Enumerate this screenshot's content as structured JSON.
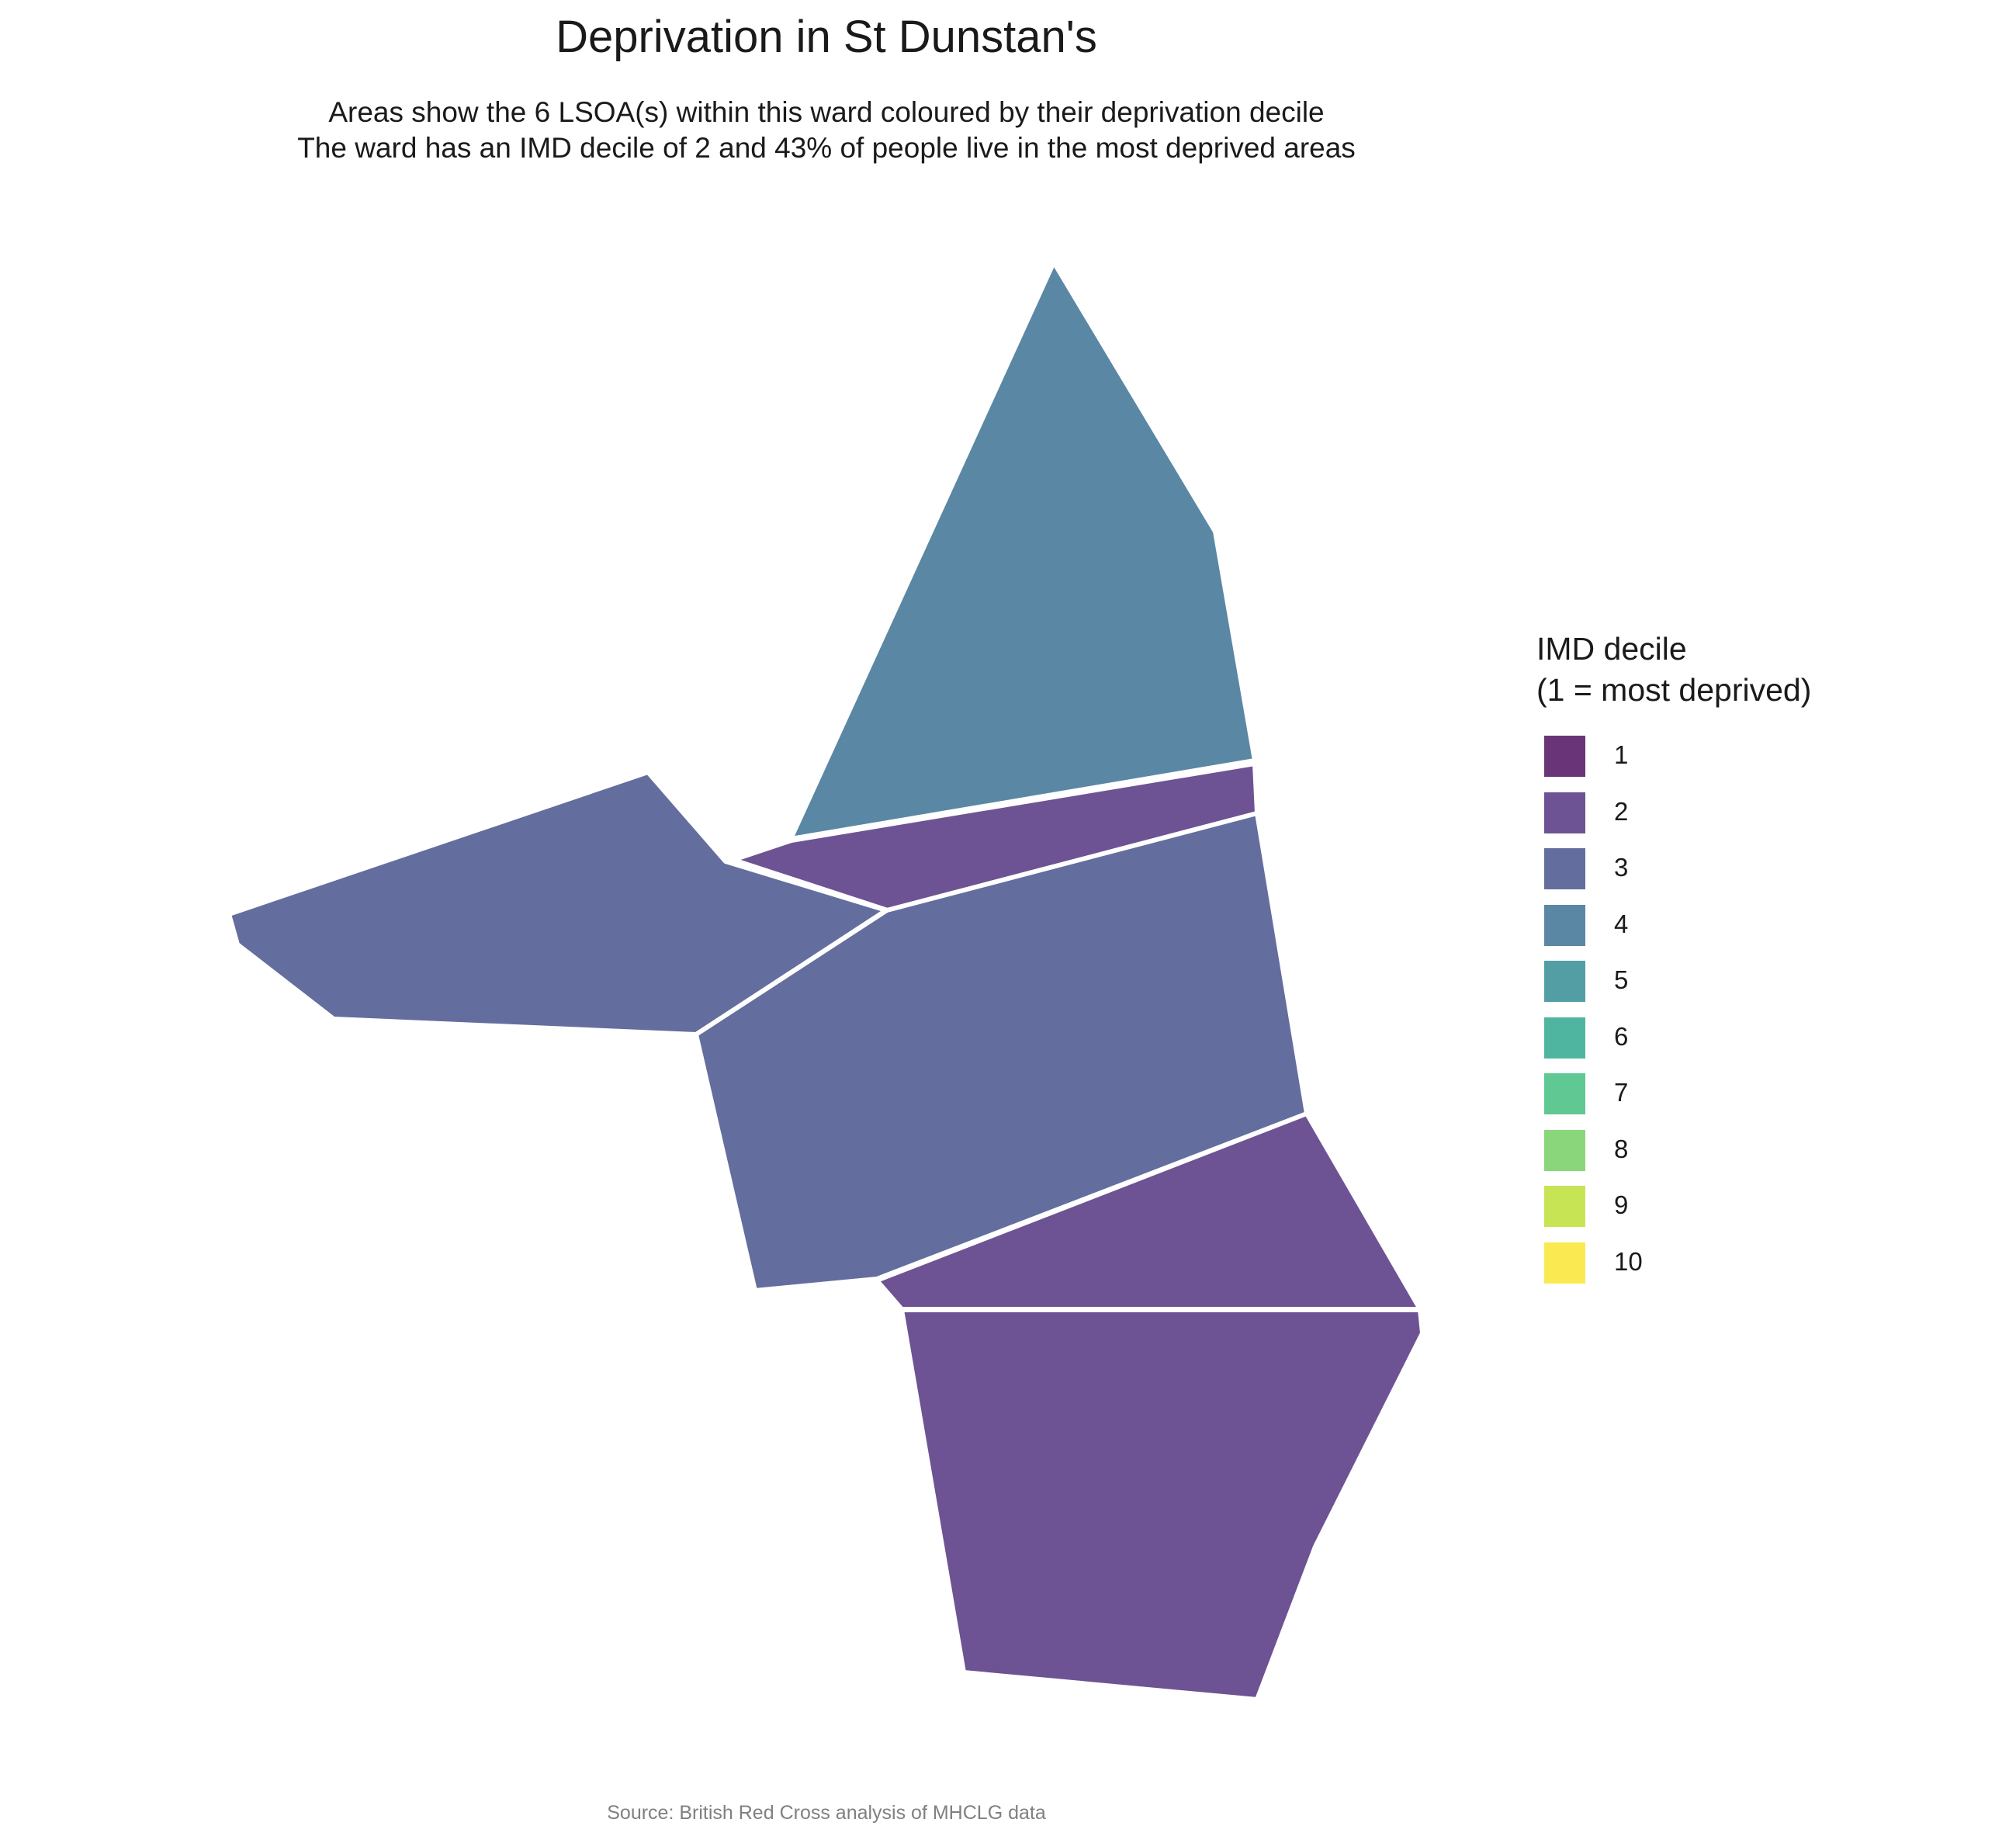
{
  "title": "Deprivation in St Dunstan's",
  "subtitle_line1": "Areas show the 6 LSOA(s) within this ward coloured by their deprivation decile",
  "subtitle_line2": "The ward has an IMD decile of 2 and 43% of people live in the most deprived areas",
  "caption": "Source: British Red Cross analysis of MHCLG data",
  "legend": {
    "title_line1": "IMD decile",
    "title_line2": "(1 = most deprived)",
    "items": [
      {
        "label": "1",
        "color": "#6a3478"
      },
      {
        "label": "2",
        "color": "#6d5393"
      },
      {
        "label": "3",
        "color": "#636e9e"
      },
      {
        "label": "4",
        "color": "#5a87a4"
      },
      {
        "label": "5",
        "color": "#539ea5"
      },
      {
        "label": "6",
        "color": "#50b5a0"
      },
      {
        "label": "7",
        "color": "#5fc893"
      },
      {
        "label": "8",
        "color": "#8ad67a"
      },
      {
        "label": "9",
        "color": "#c7e455"
      },
      {
        "label": "10",
        "color": "#fbe952"
      }
    ]
  },
  "map": {
    "border_color": "#ffffff",
    "areas": [
      {
        "name": "lsoa-north",
        "decile": 4
      },
      {
        "name": "lsoa-strip",
        "decile": 2
      },
      {
        "name": "lsoa-west",
        "decile": 3
      },
      {
        "name": "lsoa-central",
        "decile": 3
      },
      {
        "name": "lsoa-southeast",
        "decile": 2
      },
      {
        "name": "lsoa-south",
        "decile": 2
      }
    ]
  }
}
